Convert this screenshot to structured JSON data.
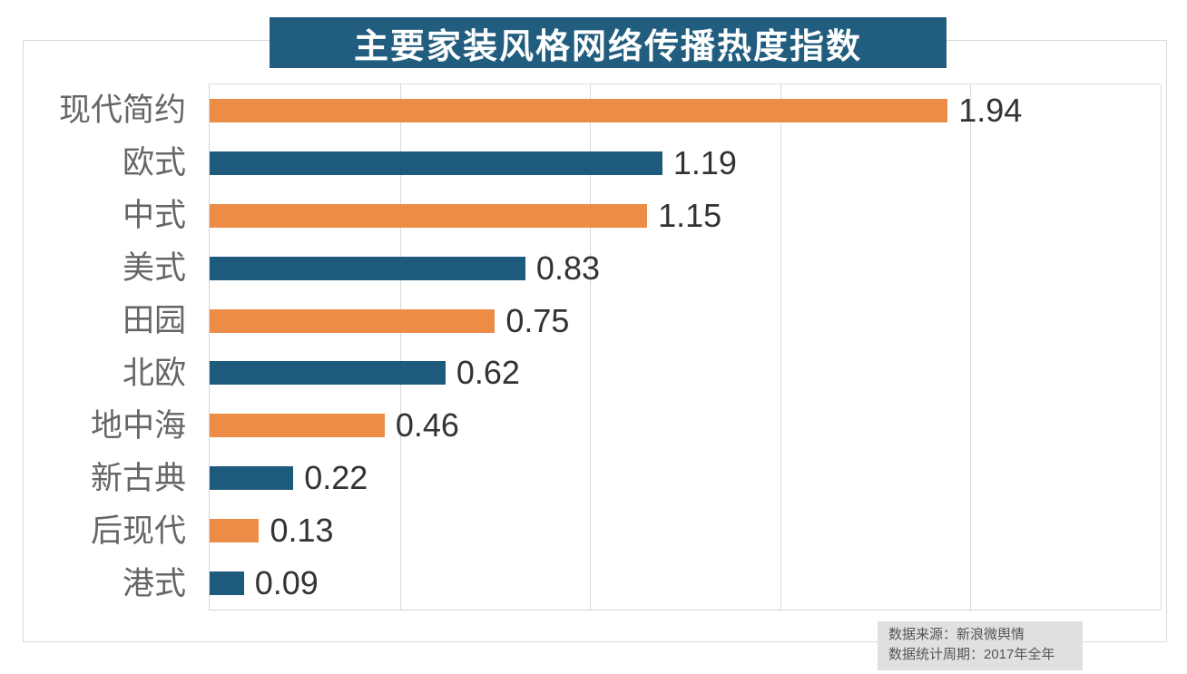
{
  "title": "主要家装风格网络传播热度指数",
  "chart_data": {
    "type": "bar",
    "orientation": "horizontal",
    "title": "主要家装风格网络传播热度指数",
    "categories": [
      "现代简约",
      "欧式",
      "中式",
      "美式",
      "田园",
      "北欧",
      "地中海",
      "新古典",
      "后现代",
      "港式"
    ],
    "values": [
      1.94,
      1.19,
      1.15,
      0.83,
      0.75,
      0.62,
      0.46,
      0.22,
      0.13,
      0.09
    ],
    "value_label_decimals": 2,
    "xlim": [
      0,
      2.5
    ],
    "gridline_step": 0.5,
    "grid": "vertical",
    "legend": "none",
    "bar_color_pattern": [
      "#ed8c46",
      "#1e5a7c"
    ]
  },
  "footer": {
    "source_line": "数据来源：新浪微舆情",
    "period_line": "数据统计周期：2017年全年"
  },
  "colors": {
    "title_bg": "#215d7e",
    "title_text": "#ffffff",
    "orange_bar": "#ed8c46",
    "teal_bar": "#1e5a7c",
    "gridline": "#d9d9d9",
    "chart_border": "#d9d9d9",
    "category_label": "#666666",
    "value_label": "#333333",
    "footer_bg": "#e0e0e0",
    "footer_text": "#555555"
  }
}
